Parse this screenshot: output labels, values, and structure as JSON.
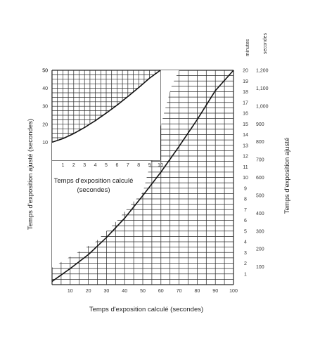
{
  "chart_data": {
    "type": "line",
    "title": "",
    "xlabel": "Temps d'exposition calculé (secondes)",
    "ylabel_left": "Temps d'exposition ajusté (secondes)",
    "ylabel_right": "Temps d'exposition ajusté",
    "right_unit_minutes": "minutes",
    "right_unit_seconds": "secondes",
    "xlim": [
      0,
      100
    ],
    "ylim": [
      0,
      20
    ],
    "x_ticks": [
      "10",
      "20",
      "30",
      "40",
      "50",
      "60",
      "70",
      "80",
      "90",
      "100"
    ],
    "y_ticks_minutes": [
      "1",
      "2",
      "3",
      "4",
      "5",
      "6",
      "7",
      "8",
      "9",
      "10",
      "11",
      "12",
      "13",
      "14",
      "15",
      "16",
      "17",
      "18",
      "19",
      "20"
    ],
    "y_ticks_seconds": [
      "100",
      "200",
      "300",
      "400",
      "500",
      "600",
      "700",
      "800",
      "900",
      "1,000",
      "1,100",
      "1,200"
    ],
    "series": [
      {
        "x": [
          0,
          10,
          20,
          30,
          40,
          50,
          60,
          70,
          80,
          90,
          100
        ],
        "y": [
          0.3,
          1.5,
          2.8,
          4.4,
          6.2,
          8.3,
          10.5,
          12.9,
          15.4,
          18.1,
          20
        ]
      }
    ],
    "inset": {
      "xlabel": "Temps d'exposition calculé (secondes)",
      "xlim": [
        0,
        10
      ],
      "ylim": [
        0,
        50
      ],
      "x_ticks": [
        "1",
        "2",
        "3",
        "4",
        "5",
        "6",
        "7",
        "8",
        "9",
        "10"
      ],
      "y_ticks": [
        "10",
        "20",
        "30",
        "40",
        "50"
      ],
      "series": [
        {
          "x": [
            0,
            1,
            2,
            3,
            4,
            5,
            6,
            7,
            8,
            9,
            10
          ],
          "y": [
            10,
            12,
            14.8,
            18.2,
            22,
            26.2,
            30.6,
            35.4,
            40.4,
            45.6,
            50
          ]
        }
      ]
    }
  }
}
